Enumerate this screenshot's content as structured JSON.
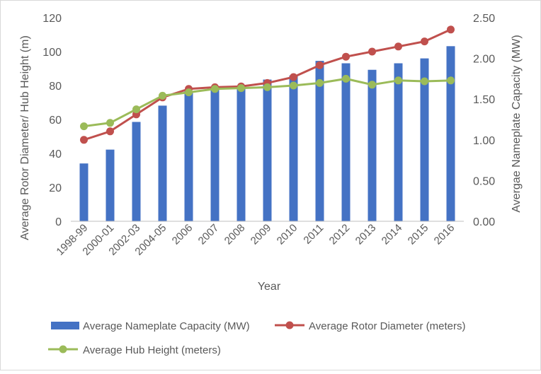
{
  "chart_data": {
    "type": "bar",
    "title": "",
    "xlabel": "Year",
    "ylabel_left": "Average Rotor Diameter/ Hub Height (m)",
    "ylabel_right": "Avergae Nameplate Capacity (MW)",
    "categories": [
      "1998-99",
      "2000-01",
      "2002-03",
      "2004-05",
      "2006",
      "2007",
      "2008",
      "2009",
      "2010",
      "2011",
      "2012",
      "2013",
      "2014",
      "2015",
      "2016"
    ],
    "ylim_left": [
      0,
      120
    ],
    "yticks_left": [
      "0",
      "20",
      "40",
      "60",
      "80",
      "100",
      "120"
    ],
    "ylim_right": [
      0,
      2.5
    ],
    "yticks_right": [
      "0.00",
      "0.50",
      "1.00",
      "1.50",
      "2.00",
      "2.50"
    ],
    "grid": false,
    "legend_position": "bottom",
    "series": [
      {
        "name": "Average Nameplate Capacity (MW)",
        "kind": "bar",
        "axis": "right",
        "color": "#4472C4",
        "values": [
          0.71,
          0.88,
          1.22,
          1.42,
          1.6,
          1.65,
          1.65,
          1.74,
          1.79,
          1.97,
          1.94,
          1.86,
          1.94,
          2.0,
          2.15
        ]
      },
      {
        "name": "Average Rotor Diameter (meters)",
        "kind": "line",
        "axis": "left",
        "color": "#C0504D",
        "values": [
          48,
          53,
          63,
          73,
          78,
          79,
          79.5,
          81.5,
          85,
          92,
          97,
          100,
          103,
          106,
          113
        ]
      },
      {
        "name": "Average Hub Height (meters)",
        "kind": "line",
        "axis": "left",
        "color": "#9BBB59",
        "values": [
          56,
          58,
          66,
          74,
          76,
          78,
          78.5,
          79,
          80,
          81.5,
          84,
          80.5,
          83,
          82.5,
          83
        ]
      }
    ]
  }
}
